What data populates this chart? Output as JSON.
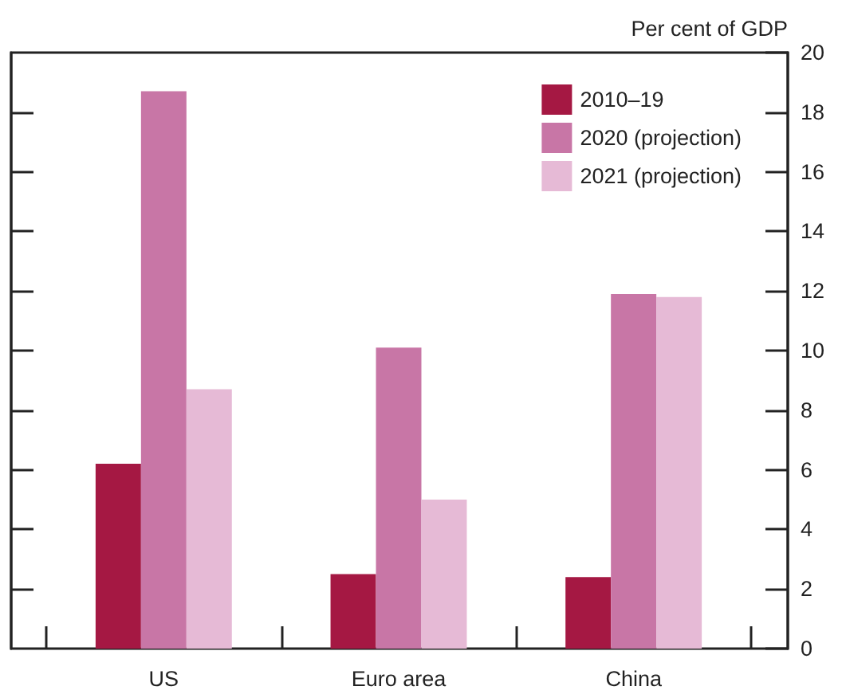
{
  "chart_data": {
    "type": "bar",
    "ylabel": "Per cent of GDP",
    "categories": [
      "US",
      "Euro area",
      "China"
    ],
    "series": [
      {
        "name": "2010–19",
        "color": "#a51843",
        "values": [
          6.2,
          2.5,
          2.4
        ]
      },
      {
        "name": "2020 (projection)",
        "color": "#c876a6",
        "values": [
          18.7,
          10.1,
          11.9
        ]
      },
      {
        "name": "2021 (projection)",
        "color": "#e6bad6",
        "values": [
          8.7,
          5.0,
          11.8
        ]
      }
    ],
    "ylim": [
      0,
      20
    ],
    "yticks": [
      0,
      2,
      4,
      6,
      8,
      10,
      12,
      14,
      16,
      18,
      20
    ],
    "grid": false,
    "legend": "top right"
  }
}
